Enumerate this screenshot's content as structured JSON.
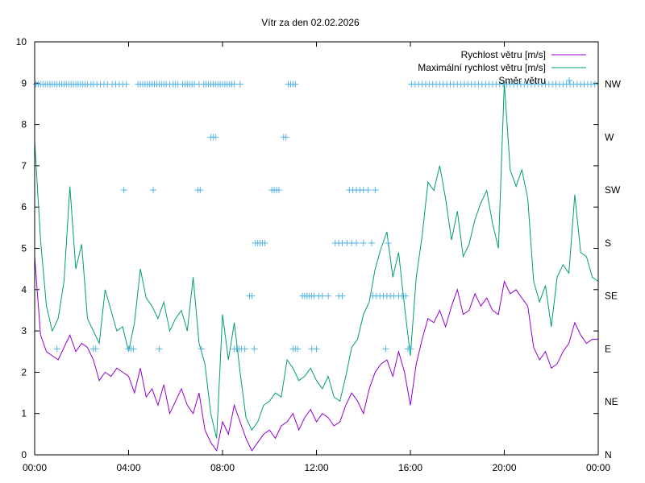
{
  "chart_data": {
    "type": "line",
    "title": "Vítr za den 02.02.2026",
    "xlabel": "",
    "ylabel": "",
    "xlim": [
      0,
      24
    ],
    "ylim": [
      0,
      10
    ],
    "x_tick_labels": [
      "00:00",
      "04:00",
      "08:00",
      "12:00",
      "16:00",
      "20:00",
      "00:00"
    ],
    "y_tick_labels": [
      "0",
      "1",
      "2",
      "3",
      "4",
      "5",
      "6",
      "7",
      "8",
      "9",
      "10"
    ],
    "y2_tick_labels": [
      "N",
      "NE",
      "E",
      "SE",
      "S",
      "SW",
      "W",
      "NW"
    ],
    "legend_position": "top-right",
    "colors": {
      "speed": "#9400d3",
      "max": "#009e73",
      "direction": "#56b4e9"
    },
    "series": [
      {
        "name": "Rychlost větru [m/s]",
        "kind": "line",
        "x": [
          0.0,
          0.25,
          0.5,
          0.75,
          1.0,
          1.25,
          1.5,
          1.75,
          2.0,
          2.25,
          2.5,
          2.75,
          3.0,
          3.25,
          3.5,
          3.75,
          4.0,
          4.25,
          4.5,
          4.75,
          5.0,
          5.25,
          5.5,
          5.75,
          6.0,
          6.25,
          6.5,
          6.75,
          7.0,
          7.25,
          7.5,
          7.75,
          8.0,
          8.25,
          8.5,
          8.75,
          9.0,
          9.25,
          9.5,
          9.75,
          10.0,
          10.25,
          10.5,
          10.75,
          11.0,
          11.25,
          11.5,
          11.75,
          12.0,
          12.25,
          12.5,
          12.75,
          13.0,
          13.25,
          13.5,
          13.75,
          14.0,
          14.25,
          14.5,
          14.75,
          15.0,
          15.25,
          15.5,
          15.75,
          16.0,
          16.25,
          16.5,
          16.75,
          17.0,
          17.25,
          17.5,
          17.75,
          18.0,
          18.25,
          18.5,
          18.75,
          19.0,
          19.25,
          19.5,
          19.75,
          20.0,
          20.25,
          20.5,
          20.75,
          21.0,
          21.25,
          21.5,
          21.75,
          22.0,
          22.25,
          22.5,
          22.75,
          23.0,
          23.25,
          23.5,
          23.75,
          24.0
        ],
        "values": [
          4.8,
          2.9,
          2.5,
          2.4,
          2.3,
          2.6,
          2.9,
          2.5,
          2.7,
          2.6,
          2.3,
          1.8,
          2.0,
          1.9,
          2.1,
          2.0,
          1.9,
          1.5,
          2.1,
          1.4,
          1.6,
          1.2,
          1.7,
          1.0,
          1.3,
          1.6,
          1.2,
          1.0,
          1.5,
          0.6,
          0.3,
          0.1,
          0.8,
          0.5,
          1.2,
          0.8,
          0.4,
          0.1,
          0.3,
          0.5,
          0.6,
          0.4,
          0.7,
          0.8,
          1.0,
          0.6,
          0.9,
          1.1,
          0.8,
          1.0,
          0.9,
          0.7,
          0.8,
          1.2,
          1.5,
          1.3,
          1.0,
          1.6,
          2.0,
          2.2,
          2.3,
          1.9,
          2.5,
          2.0,
          1.2,
          2.2,
          2.8,
          3.3,
          3.2,
          3.5,
          3.1,
          3.6,
          4.0,
          3.4,
          3.5,
          3.9,
          3.6,
          3.8,
          3.5,
          3.4,
          4.2,
          3.9,
          4.0,
          3.8,
          3.6,
          2.6,
          2.3,
          2.5,
          2.1,
          2.2,
          2.5,
          2.7,
          3.2,
          2.9,
          2.7,
          2.8,
          2.8
        ]
      },
      {
        "name": "Maximální rychlost větru [m/s]",
        "kind": "line",
        "x": [
          0.0,
          0.25,
          0.5,
          0.75,
          1.0,
          1.25,
          1.5,
          1.75,
          2.0,
          2.25,
          2.5,
          2.75,
          3.0,
          3.25,
          3.5,
          3.75,
          4.0,
          4.25,
          4.5,
          4.75,
          5.0,
          5.25,
          5.5,
          5.75,
          6.0,
          6.25,
          6.5,
          6.75,
          7.0,
          7.25,
          7.5,
          7.75,
          8.0,
          8.25,
          8.5,
          8.75,
          9.0,
          9.25,
          9.5,
          9.75,
          10.0,
          10.25,
          10.5,
          10.75,
          11.0,
          11.25,
          11.5,
          11.75,
          12.0,
          12.25,
          12.5,
          12.75,
          13.0,
          13.25,
          13.5,
          13.75,
          14.0,
          14.25,
          14.5,
          14.75,
          15.0,
          15.25,
          15.5,
          15.75,
          16.0,
          16.25,
          16.5,
          16.75,
          17.0,
          17.25,
          17.5,
          17.75,
          18.0,
          18.25,
          18.5,
          18.75,
          19.0,
          19.25,
          19.5,
          19.75,
          20.0,
          20.25,
          20.5,
          20.75,
          21.0,
          21.25,
          21.5,
          21.75,
          22.0,
          22.25,
          22.5,
          22.75,
          23.0,
          23.25,
          23.5,
          23.75,
          24.0
        ],
        "values": [
          7.6,
          5.2,
          3.6,
          3.0,
          3.3,
          4.2,
          6.5,
          4.5,
          5.1,
          3.3,
          3.0,
          2.7,
          4.0,
          3.5,
          3.0,
          3.1,
          2.5,
          3.2,
          4.5,
          3.8,
          3.6,
          3.3,
          3.7,
          3.0,
          3.3,
          3.5,
          3.0,
          4.3,
          2.7,
          2.2,
          1.0,
          0.4,
          3.4,
          2.3,
          3.2,
          2.0,
          0.9,
          0.6,
          0.8,
          1.2,
          1.3,
          1.5,
          1.4,
          2.3,
          2.1,
          1.8,
          1.9,
          2.1,
          1.8,
          1.6,
          1.9,
          1.4,
          1.3,
          1.9,
          2.6,
          2.8,
          3.4,
          3.7,
          4.5,
          5.0,
          5.4,
          4.3,
          4.9,
          3.6,
          2.4,
          4.3,
          5.3,
          6.6,
          6.4,
          7.0,
          6.2,
          5.2,
          5.9,
          4.8,
          5.1,
          5.7,
          6.1,
          6.4,
          5.6,
          5.0,
          9.0,
          6.9,
          6.5,
          6.9,
          6.2,
          4.2,
          3.7,
          4.1,
          3.1,
          4.3,
          4.6,
          4.4,
          6.3,
          4.9,
          4.8,
          4.3,
          4.2
        ]
      },
      {
        "name": "Směr větru",
        "kind": "points",
        "note": "values are compass sector indices: 0=N, 1=NE, 2=E, 3=SE, 4=S, 5=SW, 6=W, 7=NW",
        "x": [
          0.05,
          0.15,
          0.25,
          0.35,
          0.45,
          0.55,
          0.65,
          0.75,
          0.85,
          0.95,
          1.05,
          1.15,
          1.25,
          1.35,
          1.45,
          1.55,
          1.65,
          1.75,
          1.85,
          1.95,
          2.05,
          2.15,
          2.25,
          2.4,
          2.5,
          2.65,
          2.8,
          2.95,
          3.1,
          3.3,
          3.45,
          3.6,
          3.75,
          3.9,
          4.4,
          4.5,
          4.6,
          4.7,
          4.8,
          4.9,
          5.0,
          5.1,
          5.2,
          5.3,
          5.4,
          5.5,
          5.6,
          5.75,
          5.9,
          6.0,
          6.1,
          6.3,
          6.4,
          6.5,
          6.6,
          6.7,
          6.8,
          7.0,
          7.2,
          7.3,
          7.4,
          7.5,
          7.6,
          7.7,
          7.8,
          7.9,
          8.0,
          8.1,
          8.2,
          8.3,
          8.4,
          8.5,
          8.75,
          10.8,
          10.9,
          11.0,
          11.1,
          16.05,
          16.2,
          16.35,
          16.5,
          16.65,
          16.8,
          16.95,
          17.1,
          17.25,
          17.4,
          17.55,
          17.7,
          17.85,
          18.0,
          18.15,
          18.3,
          18.45,
          18.6,
          18.75,
          18.9,
          19.05,
          19.2,
          19.35,
          19.5,
          19.65,
          19.8,
          19.95,
          20.1,
          20.25,
          20.4,
          20.55,
          20.7,
          20.85,
          21.0,
          21.15,
          21.3,
          21.45,
          21.6,
          21.75,
          21.9,
          22.05,
          22.2,
          22.35,
          22.5,
          22.65,
          22.8,
          22.95,
          23.1,
          23.25,
          23.4,
          23.55,
          23.7,
          23.85,
          7.5,
          7.6,
          7.7,
          10.6,
          10.7,
          3.8,
          5.05,
          6.95,
          7.05,
          10.1,
          10.2,
          10.3,
          10.4,
          13.4,
          13.55,
          13.7,
          13.85,
          14.0,
          14.2,
          14.5,
          9.4,
          9.5,
          9.6,
          9.7,
          9.8,
          12.8,
          12.95,
          13.1,
          13.3,
          13.5,
          13.7,
          14.0,
          14.35,
          15.05,
          9.15,
          9.25,
          11.4,
          11.5,
          11.6,
          11.7,
          11.8,
          11.9,
          12.1,
          12.25,
          12.5,
          12.95,
          13.1,
          14.4,
          14.55,
          14.7,
          14.85,
          15.0,
          15.15,
          15.3,
          15.5,
          15.65,
          15.8,
          0.95,
          2.5,
          2.6,
          4.0,
          4.1,
          4.2,
          5.3,
          7.1,
          8.5,
          8.6,
          8.7,
          8.8,
          8.95,
          9.35,
          11.0,
          11.1,
          11.2,
          11.8,
          12.0,
          14.95,
          15.9,
          16.0
        ],
        "values": [
          7,
          7,
          7,
          7,
          7,
          7,
          7,
          7,
          7,
          7,
          7,
          7,
          7,
          7,
          7,
          7,
          7,
          7,
          7,
          7,
          7,
          7,
          7,
          7,
          7,
          7,
          7,
          7,
          7,
          7,
          7,
          7,
          7,
          7,
          7,
          7,
          7,
          7,
          7,
          7,
          7,
          7,
          7,
          7,
          7,
          7,
          7,
          7,
          7,
          7,
          7,
          7,
          7,
          7,
          7,
          7,
          7,
          7,
          7,
          7,
          7,
          7,
          7,
          7,
          7,
          7,
          7,
          7,
          7,
          7,
          7,
          7,
          7,
          7,
          7,
          7,
          7,
          7,
          7,
          7,
          7,
          7,
          7,
          7,
          7,
          7,
          7,
          7,
          7,
          7,
          7,
          7,
          7,
          7,
          7,
          7,
          7,
          7,
          7,
          7,
          7,
          7,
          7,
          7,
          7,
          7,
          7,
          7,
          7,
          7,
          7,
          7,
          7,
          7,
          7,
          7,
          7,
          7,
          7,
          7,
          7,
          7,
          7,
          7,
          7,
          7,
          7,
          7,
          7,
          7,
          6,
          6,
          6,
          6,
          6,
          5,
          5,
          5,
          5,
          5,
          5,
          5,
          5,
          5,
          5,
          5,
          5,
          5,
          5,
          5,
          4,
          4,
          4,
          4,
          4,
          4,
          4,
          4,
          4,
          4,
          4,
          4,
          4,
          4,
          3,
          3,
          3,
          3,
          3,
          3,
          3,
          3,
          3,
          3,
          3,
          3,
          3,
          3,
          3,
          3,
          3,
          3,
          3,
          3,
          3,
          3,
          3,
          2,
          2,
          2,
          2,
          2,
          2,
          2,
          2,
          2,
          2,
          2,
          2,
          2,
          2,
          2,
          2,
          2,
          2,
          2,
          2,
          2,
          2
        ]
      }
    ]
  }
}
